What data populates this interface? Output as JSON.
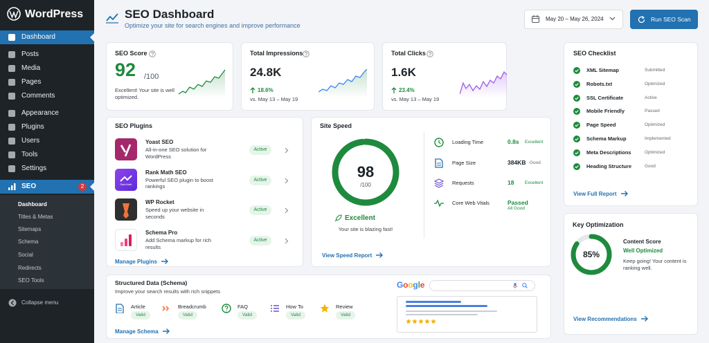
{
  "sidebar": {
    "logo": "WordPress",
    "menu": [
      "Dashboard",
      "Posts",
      "Media",
      "Pages",
      "Comments",
      "Appearance",
      "Plugins",
      "Users",
      "Tools",
      "Settings"
    ],
    "seo": {
      "label": "SEO",
      "badge": "2"
    },
    "submenu": [
      "Dashboard",
      "Titles & Metas",
      "Sitemaps",
      "Schema",
      "Social",
      "Redirects",
      "SEO Tools"
    ],
    "collapse": "Collapse menu"
  },
  "header": {
    "title": "SEO Dashboard",
    "subtitle": "Optimize your site for search engines and improve performance",
    "date_range": "May 20 – May 26, 2024",
    "button": "Run SEO Scan"
  },
  "stats": [
    {
      "title": "SEO Score",
      "value": 92,
      "max": {
        "value": 100,
        "label": "/100"
      },
      "note": "Excellent! Your site is well optimized."
    },
    {
      "title": "Total Impressions",
      "value": "24.8K",
      "change": "18.6%",
      "compare": "vs. May 13 – May 19"
    },
    {
      "title": "Total Clicks",
      "value": "1.6K",
      "change": "23.4%",
      "compare": "vs. May 13 – May 19"
    }
  ],
  "plugins": {
    "title": "SEO Plugins",
    "items": [
      {
        "name": "Yoast SEO",
        "description": "All-in-one SEO solution for WordPress",
        "status": "Active"
      },
      {
        "name": "Rank Math SEO",
        "description": "Powerful SEO plugin to boost rankings",
        "status": "Active",
        "logo_text": "Rank Math"
      },
      {
        "name": "WP Rocket",
        "description": "Speed up your website in seconds",
        "status": "Active"
      },
      {
        "name": "Schema Pro",
        "description": "Add Schema markup for rich results",
        "status": "Active"
      }
    ],
    "link": "Manage Plugins"
  },
  "site_speed": {
    "title": "Site Speed",
    "score": 98,
    "max": {
      "value": 100,
      "label": "/100"
    },
    "rating": "Excellent",
    "note": "Your site is blazing fast!",
    "metrics": [
      {
        "label": "Loading Time",
        "value": "0.8s",
        "rating": "Excellent"
      },
      {
        "label": "Page Size",
        "value": "384KB",
        "rating": "Good"
      },
      {
        "label": "Requests",
        "value": "18",
        "rating": "Excellent"
      },
      {
        "label": "Core Web Vitals",
        "value": "Passed",
        "rating": "All Good"
      }
    ],
    "link": "View Speed Report"
  },
  "schema": {
    "title": "Structured Data (Schema)",
    "subtitle": "Improve your search results with rich snippets",
    "items": [
      {
        "name": "Article",
        "status": "Valid"
      },
      {
        "name": "Breadcrumb",
        "status": "Valid"
      },
      {
        "name": "FAQ",
        "status": "Valid"
      },
      {
        "name": "How To",
        "status": "Valid"
      },
      {
        "name": "Review",
        "status": "Valid"
      }
    ],
    "link": "Manage Schema",
    "preview_brand": "Google"
  },
  "checklist": {
    "title": "SEO Checklist",
    "items": [
      {
        "name": "XML Sitemap",
        "status": "Submitted"
      },
      {
        "name": "Robots.txt",
        "status": "Optimized"
      },
      {
        "name": "SSL Certificate",
        "status": "Active"
      },
      {
        "name": "Mobile Friendly",
        "status": "Passed"
      },
      {
        "name": "Page Speed",
        "status": "Optimized"
      },
      {
        "name": "Schema Markup",
        "status": "Implemented"
      },
      {
        "name": "Meta Descriptions",
        "status": "Optimized"
      },
      {
        "name": "Heading Structure",
        "status": "Good"
      }
    ],
    "link": "View Full Report"
  },
  "key_optimization": {
    "title": "Key Optimization",
    "score": {
      "value": 85,
      "label": "85%"
    },
    "label": "Content Score",
    "status": "Well Optimized",
    "note": "Keep going! Your content is ranking well.",
    "link": "View Recommendations"
  }
}
